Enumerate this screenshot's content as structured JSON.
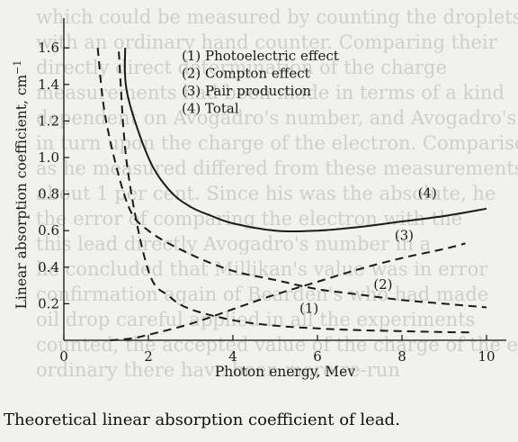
{
  "caption": "Theoretical linear absorption coefficient of lead.",
  "chart_data": {
    "type": "line",
    "title": "",
    "xlabel": "Photon energy, Mev",
    "ylabel": "Linear absorption coefficient, cm",
    "ylabel_sup": "−1",
    "xlim": [
      0,
      11.2
    ],
    "ylim": [
      0,
      1.68
    ],
    "x_ticks": [
      0,
      2,
      4,
      6,
      8,
      10
    ],
    "y_ticks": [
      0.2,
      0.4,
      0.6,
      0.8,
      1.0,
      1.2,
      1.4,
      1.6
    ],
    "grid": false,
    "legend_position": "top-center",
    "legend": [
      {
        "label": "(1) Photoelectric effect",
        "style": "dashed"
      },
      {
        "label": "(2) Compton effect",
        "style": "dashed"
      },
      {
        "label": "(3) Pair production",
        "style": "dashed"
      },
      {
        "label": "(4) Total",
        "style": "solid"
      }
    ],
    "series": [
      {
        "name": "(1) Photoelectric effect",
        "style": "dashed",
        "x": [
          1.3,
          1.5,
          2,
          2.5,
          3,
          4,
          5,
          6,
          7,
          8,
          9,
          9.6
        ],
        "y": [
          1.58,
          0.95,
          0.38,
          0.24,
          0.17,
          0.11,
          0.08,
          0.065,
          0.055,
          0.05,
          0.045,
          0.043
        ]
      },
      {
        "name": "(2) Compton effect",
        "style": "dashed",
        "x": [
          0.8,
          1,
          1.5,
          2,
          3,
          4,
          5,
          6,
          7,
          8,
          9,
          10
        ],
        "y": [
          1.6,
          1.2,
          0.75,
          0.6,
          0.47,
          0.38,
          0.33,
          0.28,
          0.25,
          0.22,
          0.2,
          0.18
        ]
      },
      {
        "name": "(3) Pair production",
        "style": "dashed",
        "x": [
          1.1,
          1.6,
          2,
          3,
          4,
          5,
          6,
          7,
          8,
          9,
          9.5
        ],
        "y": [
          0.0,
          0.01,
          0.03,
          0.09,
          0.17,
          0.25,
          0.32,
          0.39,
          0.45,
          0.5,
          0.53
        ]
      },
      {
        "name": "(4) Total",
        "style": "solid",
        "x": [
          1.45,
          1.5,
          2,
          2.5,
          3,
          3.5,
          4,
          5,
          6,
          7,
          8,
          9,
          10
        ],
        "y": [
          1.6,
          1.35,
          1.0,
          0.82,
          0.73,
          0.68,
          0.64,
          0.6,
          0.6,
          0.62,
          0.65,
          0.68,
          0.72
        ]
      }
    ],
    "curve_labels": [
      {
        "text": "(1)",
        "x": 5.8,
        "y": 0.15
      },
      {
        "text": "(2)",
        "x": 7.55,
        "y": 0.28
      },
      {
        "text": "(3)",
        "x": 8.05,
        "y": 0.55
      },
      {
        "text": "(4)",
        "x": 8.6,
        "y": 0.78
      }
    ]
  }
}
